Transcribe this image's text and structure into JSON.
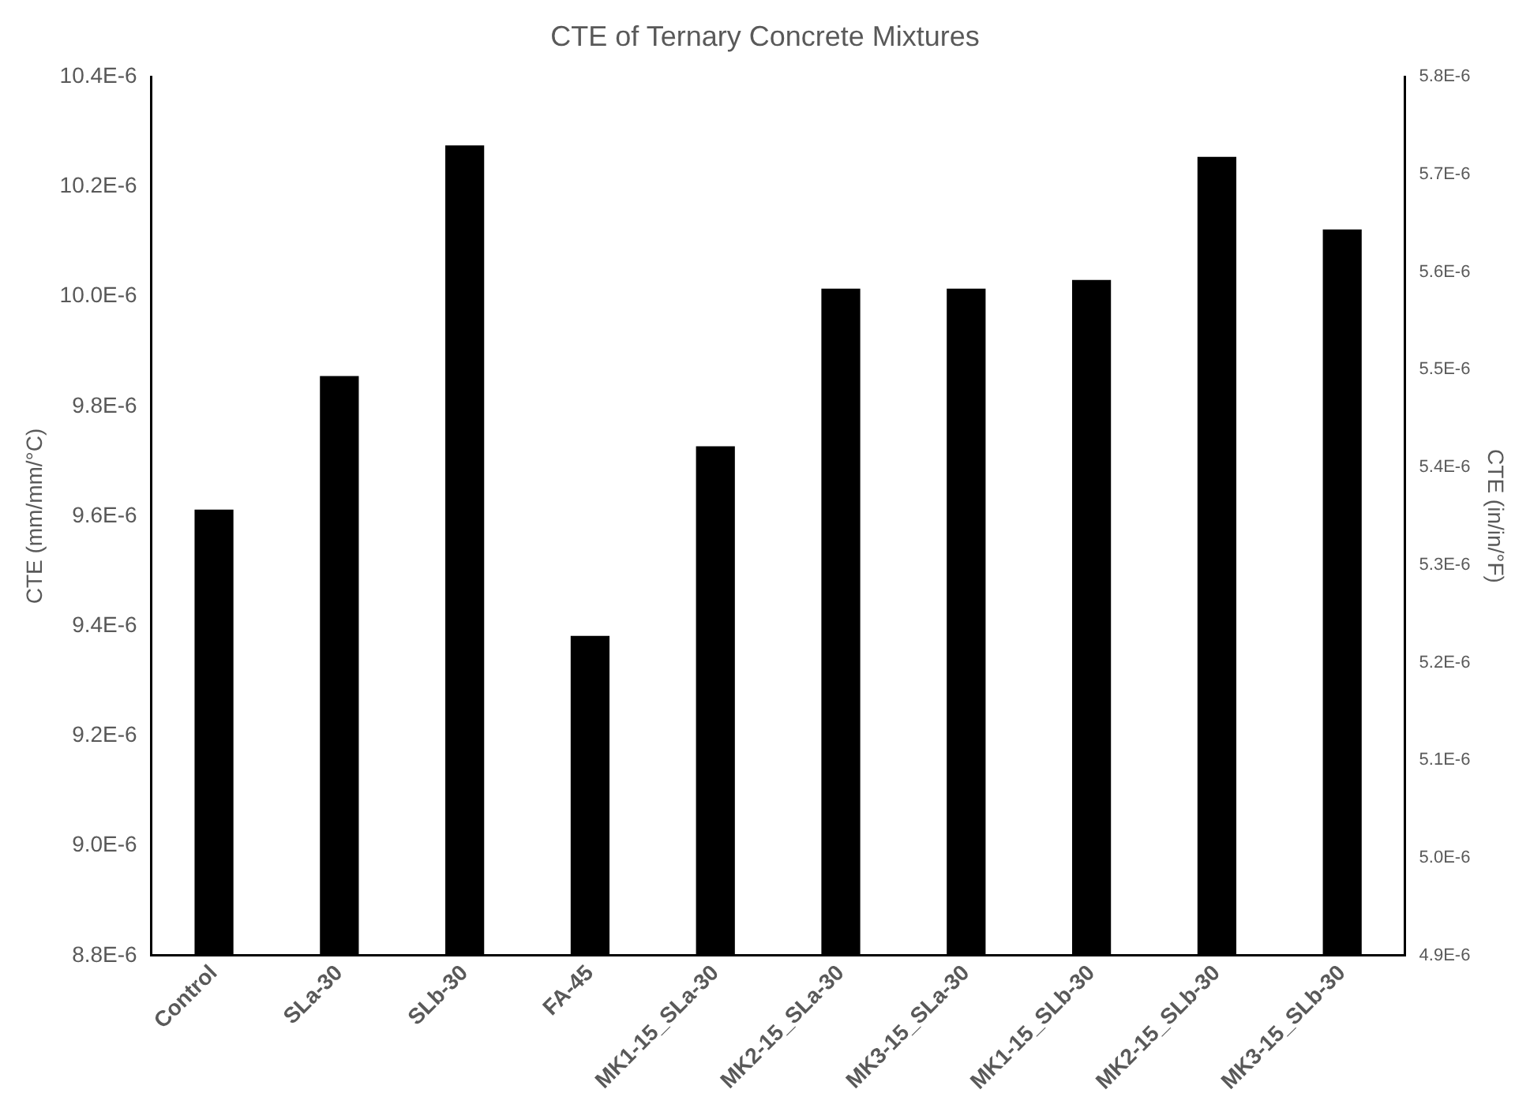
{
  "chart_data": {
    "type": "bar",
    "title": "CTE of Ternary Concrete Mixtures",
    "ylabel": "CTE (mm/mm/°C)",
    "y2label": "CTE (in/in/°F)",
    "categories": [
      "Control",
      "SLa-30",
      "SLb-30",
      "FA-45",
      "MK1-15_SLa-30",
      "MK2-15_SLa-30",
      "MK3-15_SLa-30",
      "MK1-15_SLb-30",
      "MK2-15_SLb-30",
      "MK3-15_SLb-30"
    ],
    "values": [
      9.612e-06,
      9.855e-06,
      1.0275e-05,
      9.382e-06,
      9.727e-06,
      1.0014e-05,
      1.0014e-05,
      1.003e-05,
      1.0254e-05,
      1.0122e-05
    ],
    "color": "#000000",
    "ylim": [
      8.8e-06,
      1.04e-05
    ],
    "yticks": [
      {
        "value": 8.8e-06,
        "label": "8.8E-6"
      },
      {
        "value": 9e-06,
        "label": "9.0E-6"
      },
      {
        "value": 9.2e-06,
        "label": "9.2E-6"
      },
      {
        "value": 9.4e-06,
        "label": "9.4E-6"
      },
      {
        "value": 9.6e-06,
        "label": "9.6E-6"
      },
      {
        "value": 9.8e-06,
        "label": "9.8E-6"
      },
      {
        "value": 1e-05,
        "label": "10.0E-6"
      },
      {
        "value": 1.02e-05,
        "label": "10.2E-6"
      },
      {
        "value": 1.04e-05,
        "label": "10.4E-6"
      }
    ],
    "y2lim": [
      4.9e-06,
      5.8e-06
    ],
    "y2ticks": [
      {
        "value": 4.9e-06,
        "label": "4.9E-6"
      },
      {
        "value": 5e-06,
        "label": "5.0E-6"
      },
      {
        "value": 5.1e-06,
        "label": "5.1E-6"
      },
      {
        "value": 5.2e-06,
        "label": "5.2E-6"
      },
      {
        "value": 5.3e-06,
        "label": "5.3E-6"
      },
      {
        "value": 5.4e-06,
        "label": "5.4E-6"
      },
      {
        "value": 5.5e-06,
        "label": "5.5E-6"
      },
      {
        "value": 5.6e-06,
        "label": "5.6E-6"
      },
      {
        "value": 5.7e-06,
        "label": "5.7E-6"
      },
      {
        "value": 5.8e-06,
        "label": "5.8E-6"
      }
    ],
    "grid": false,
    "legend": false
  }
}
